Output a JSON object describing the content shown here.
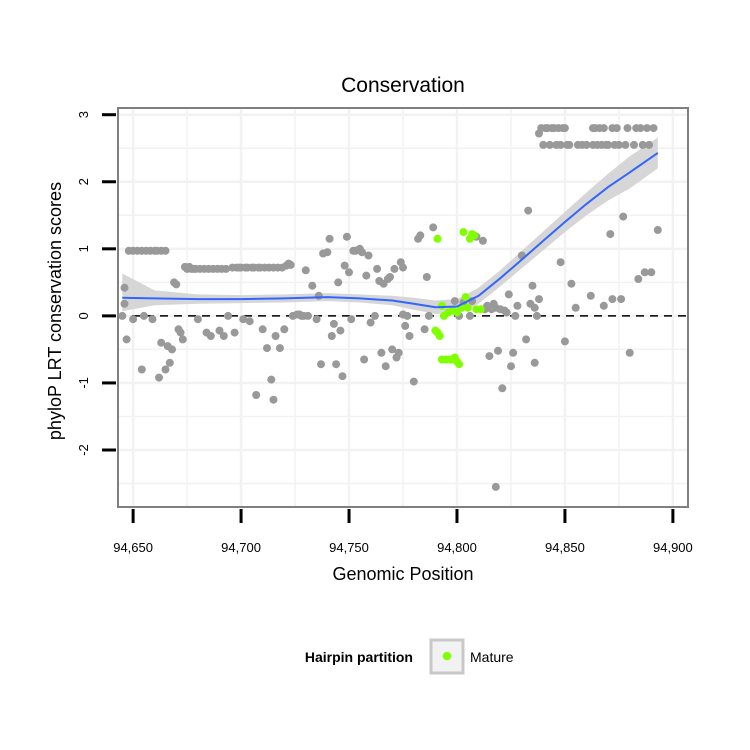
{
  "chart_data": {
    "type": "scatter",
    "title": "Conservation",
    "xlabel": "Genomic Position",
    "ylabel": "phyloP LRT conservation scores",
    "xlim": [
      94643,
      94907
    ],
    "ylim": [
      -2.85,
      3.1
    ],
    "x_ticks": [
      94650,
      94700,
      94750,
      94800,
      94850,
      94900
    ],
    "x_tick_labels": [
      "94,650",
      "94,700",
      "94,750",
      "94,800",
      "94,850",
      "94,900"
    ],
    "y_ticks": [
      -2,
      -1,
      0,
      1,
      2,
      3
    ],
    "y_tick_labels": [
      "-2",
      "-1",
      "0",
      "1",
      "2",
      "3"
    ],
    "reference_line": {
      "y": 0,
      "style": "dashed"
    },
    "grid": true,
    "colors": {
      "other": "#999999",
      "mature": "#80ff00",
      "smooth_line": "#3366ff",
      "ribbon": "#d6d6d6",
      "panel_border": "#7f7f7f",
      "grid": "#f2f2f2"
    },
    "legend": {
      "title": "Hairpin partition",
      "position": "bottom",
      "entries": [
        {
          "label": "Mature",
          "color": "#80ff00"
        }
      ]
    },
    "series": [
      {
        "name": "Other",
        "color": "#999999",
        "points": [
          [
            94645,
            0.0
          ],
          [
            94646,
            0.18
          ],
          [
            94646,
            0.42
          ],
          [
            94647,
            -0.35
          ],
          [
            94648,
            0.97
          ],
          [
            94650,
            0.97
          ],
          [
            94650,
            -0.05
          ],
          [
            94652,
            0.97
          ],
          [
            94654,
            0.97
          ],
          [
            94654,
            -0.8
          ],
          [
            94655,
            0.0
          ],
          [
            94656,
            0.97
          ],
          [
            94658,
            0.97
          ],
          [
            94659,
            -0.05
          ],
          [
            94660,
            0.97
          ],
          [
            94661,
            0.97
          ],
          [
            94662,
            -0.92
          ],
          [
            94663,
            0.97
          ],
          [
            94663,
            -0.4
          ],
          [
            94665,
            0.97
          ],
          [
            94665,
            -0.8
          ],
          [
            94666,
            -0.45
          ],
          [
            94667,
            -0.7
          ],
          [
            94668,
            -0.5
          ],
          [
            94669,
            0.5
          ],
          [
            94670,
            0.47
          ],
          [
            94671,
            -0.2
          ],
          [
            94672,
            -0.25
          ],
          [
            94673,
            -0.35
          ],
          [
            94674,
            0.73
          ],
          [
            94675,
            0.7
          ],
          [
            94676,
            0.73
          ],
          [
            94677,
            0.7
          ],
          [
            94678,
            0.7
          ],
          [
            94679,
            0.7
          ],
          [
            94680,
            -0.05
          ],
          [
            94681,
            0.7
          ],
          [
            94683,
            0.7
          ],
          [
            94684,
            -0.25
          ],
          [
            94685,
            0.7
          ],
          [
            94686,
            -0.3
          ],
          [
            94687,
            0.7
          ],
          [
            94689,
            0.7
          ],
          [
            94690,
            -0.22
          ],
          [
            94691,
            0.7
          ],
          [
            94692,
            -0.3
          ],
          [
            94693,
            0.7
          ],
          [
            94694,
            0.0
          ],
          [
            94696,
            0.72
          ],
          [
            94697,
            -0.25
          ],
          [
            94698,
            0.72
          ],
          [
            94699,
            0.72
          ],
          [
            94700,
            0.72
          ],
          [
            94701,
            -0.05
          ],
          [
            94702,
            0.72
          ],
          [
            94703,
            0.72
          ],
          [
            94704,
            -0.08
          ],
          [
            94705,
            0.72
          ],
          [
            94706,
            0.72
          ],
          [
            94707,
            -1.18
          ],
          [
            94708,
            0.72
          ],
          [
            94709,
            0.72
          ],
          [
            94710,
            -0.2
          ],
          [
            94711,
            0.72
          ],
          [
            94712,
            -0.48
          ],
          [
            94713,
            0.72
          ],
          [
            94714,
            -0.95
          ],
          [
            94715,
            -1.25
          ],
          [
            94715,
            0.72
          ],
          [
            94716,
            -0.3
          ],
          [
            94717,
            0.72
          ],
          [
            94718,
            -0.48
          ],
          [
            94719,
            0.72
          ],
          [
            94720,
            -0.2
          ],
          [
            94721,
            0.75
          ],
          [
            94722,
            0.78
          ],
          [
            94723,
            0.76
          ],
          [
            94724,
            0.0
          ],
          [
            94726,
            0.02
          ],
          [
            94727,
            0.02
          ],
          [
            94728,
            0.0
          ],
          [
            94729,
            0.0
          ],
          [
            94730,
            0.68
          ],
          [
            94731,
            0.0
          ],
          [
            94733,
            0.45
          ],
          [
            94735,
            -0.05
          ],
          [
            94736,
            0.3
          ],
          [
            94737,
            -0.72
          ],
          [
            94738,
            0.93
          ],
          [
            94740,
            0.95
          ],
          [
            94741,
            1.15
          ],
          [
            94742,
            -0.3
          ],
          [
            94743,
            -0.12
          ],
          [
            94744,
            -0.72
          ],
          [
            94745,
            0.5
          ],
          [
            94746,
            -0.22
          ],
          [
            94747,
            -0.9
          ],
          [
            94748,
            0.75
          ],
          [
            94749,
            1.18
          ],
          [
            94750,
            0.65
          ],
          [
            94751,
            -0.05
          ],
          [
            94752,
            0.97
          ],
          [
            94753,
            0.97
          ],
          [
            94754,
            0.98
          ],
          [
            94755,
            1.0
          ],
          [
            94756,
            0.95
          ],
          [
            94757,
            -0.65
          ],
          [
            94758,
            0.6
          ],
          [
            94759,
            0.9
          ],
          [
            94760,
            -0.1
          ],
          [
            94762,
            0.0
          ],
          [
            94763,
            0.7
          ],
          [
            94764,
            0.52
          ],
          [
            94765,
            -0.55
          ],
          [
            94766,
            0.48
          ],
          [
            94767,
            -0.75
          ],
          [
            94768,
            0.55
          ],
          [
            94769,
            0.58
          ],
          [
            94770,
            -0.5
          ],
          [
            94771,
            0.7
          ],
          [
            94772,
            -0.62
          ],
          [
            94773,
            -0.55
          ],
          [
            94774,
            0.8
          ],
          [
            94775,
            0.72
          ],
          [
            94775,
            0.02
          ],
          [
            94776,
            -0.15
          ],
          [
            94777,
            0.0
          ],
          [
            94778,
            -0.3
          ],
          [
            94780,
            -0.98
          ],
          [
            94782,
            1.15
          ],
          [
            94783,
            1.2
          ],
          [
            94785,
            -0.2
          ],
          [
            94786,
            0.58
          ],
          [
            94787,
            0.0
          ],
          [
            94789,
            1.32
          ],
          [
            94799,
            0.22
          ],
          [
            94801,
            0.0
          ],
          [
            94803,
            0.2
          ],
          [
            94806,
            0.0
          ],
          [
            94807,
            0.22
          ],
          [
            94809,
            1.18
          ],
          [
            94812,
            1.12
          ],
          [
            94813,
            0.1
          ],
          [
            94814,
            0.15
          ],
          [
            94815,
            -0.6
          ],
          [
            94816,
            0.1
          ],
          [
            94817,
            0.18
          ],
          [
            94818,
            0.12
          ],
          [
            94818,
            -2.55
          ],
          [
            94819,
            -0.52
          ],
          [
            94820,
            0.1
          ],
          [
            94821,
            -1.08
          ],
          [
            94822,
            0.08
          ],
          [
            94823,
            0.05
          ],
          [
            94824,
            0.32
          ],
          [
            94825,
            -0.75
          ],
          [
            94826,
            -0.55
          ],
          [
            94827,
            0.0
          ],
          [
            94828,
            0.15
          ],
          [
            94830,
            0.9
          ],
          [
            94832,
            -0.35
          ],
          [
            94833,
            1.57
          ],
          [
            94834,
            0.18
          ],
          [
            94835,
            0.45
          ],
          [
            94836,
            0.12
          ],
          [
            94836,
            -0.7
          ],
          [
            94837,
            0.0
          ],
          [
            94838,
            0.25
          ],
          [
            94838,
            2.72
          ],
          [
            94839,
            2.8
          ],
          [
            94840,
            2.55
          ],
          [
            94841,
            2.8
          ],
          [
            94842,
            2.8
          ],
          [
            94843,
            2.55
          ],
          [
            94844,
            2.8
          ],
          [
            94845,
            2.8
          ],
          [
            94846,
            2.55
          ],
          [
            94847,
            2.8
          ],
          [
            94848,
            0.8
          ],
          [
            94848,
            2.55
          ],
          [
            94849,
            2.8
          ],
          [
            94850,
            -0.38
          ],
          [
            94850,
            2.8
          ],
          [
            94851,
            2.55
          ],
          [
            94852,
            2.55
          ],
          [
            94853,
            0.48
          ],
          [
            94855,
            0.12
          ],
          [
            94856,
            2.55
          ],
          [
            94858,
            2.55
          ],
          [
            94860,
            2.55
          ],
          [
            94862,
            0.3
          ],
          [
            94863,
            2.8
          ],
          [
            94863,
            2.55
          ],
          [
            94864,
            2.8
          ],
          [
            94865,
            2.55
          ],
          [
            94866,
            2.8
          ],
          [
            94867,
            2.55
          ],
          [
            94868,
            0.15
          ],
          [
            94868,
            2.8
          ],
          [
            94869,
            2.55
          ],
          [
            94870,
            2.55
          ],
          [
            94871,
            1.22
          ],
          [
            94872,
            2.8
          ],
          [
            94872,
            0.25
          ],
          [
            94873,
            2.55
          ],
          [
            94874,
            2.8
          ],
          [
            94875,
            2.55
          ],
          [
            94876,
            0.25
          ],
          [
            94877,
            1.48
          ],
          [
            94878,
            2.55
          ],
          [
            94879,
            2.8
          ],
          [
            94880,
            -0.55
          ],
          [
            94882,
            2.55
          ],
          [
            94883,
            2.8
          ],
          [
            94884,
            0.55
          ],
          [
            94885,
            2.8
          ],
          [
            94886,
            2.55
          ],
          [
            94887,
            0.65
          ],
          [
            94888,
            2.8
          ],
          [
            94889,
            2.55
          ],
          [
            94890,
            0.65
          ],
          [
            94891,
            2.8
          ],
          [
            94893,
            1.28
          ]
        ]
      },
      {
        "name": "Mature",
        "color": "#80ff00",
        "points": [
          [
            94790,
            -0.22
          ],
          [
            94791,
            -0.25
          ],
          [
            94791,
            1.15
          ],
          [
            94792,
            -0.3
          ],
          [
            94793,
            0.15
          ],
          [
            94793,
            -0.65
          ],
          [
            94794,
            0.0
          ],
          [
            94795,
            -0.65
          ],
          [
            94796,
            0.05
          ],
          [
            94797,
            -0.65
          ],
          [
            94798,
            0.08
          ],
          [
            94798,
            -0.65
          ],
          [
            94799,
            -0.62
          ],
          [
            94800,
            -0.68
          ],
          [
            94800,
            0.05
          ],
          [
            94801,
            -0.72
          ],
          [
            94802,
            0.12
          ],
          [
            94803,
            1.25
          ],
          [
            94804,
            0.28
          ],
          [
            94805,
            0.12
          ],
          [
            94806,
            1.15
          ],
          [
            94807,
            1.22
          ],
          [
            94808,
            1.2
          ],
          [
            94809,
            0.1
          ],
          [
            94811,
            0.1
          ]
        ]
      }
    ],
    "smooth": {
      "x": [
        94645,
        94660,
        94680,
        94700,
        94720,
        94740,
        94755,
        94770,
        94780,
        94790,
        94800,
        94810,
        94820,
        94830,
        94840,
        94850,
        94860,
        94870,
        94880,
        94893
      ],
      "y": [
        0.27,
        0.26,
        0.25,
        0.25,
        0.26,
        0.28,
        0.26,
        0.23,
        0.18,
        0.13,
        0.14,
        0.3,
        0.56,
        0.84,
        1.12,
        1.4,
        1.67,
        1.92,
        2.14,
        2.43
      ],
      "ymin": [
        0.07,
        0.16,
        0.18,
        0.19,
        0.2,
        0.22,
        0.2,
        0.16,
        0.09,
        0.03,
        0.03,
        0.18,
        0.44,
        0.71,
        0.98,
        1.25,
        1.5,
        1.72,
        1.9,
        2.2
      ],
      "ymax": [
        0.63,
        0.38,
        0.32,
        0.31,
        0.32,
        0.34,
        0.32,
        0.3,
        0.27,
        0.23,
        0.25,
        0.42,
        0.68,
        0.97,
        1.26,
        1.55,
        1.84,
        2.12,
        2.38,
        2.66
      ]
    }
  }
}
